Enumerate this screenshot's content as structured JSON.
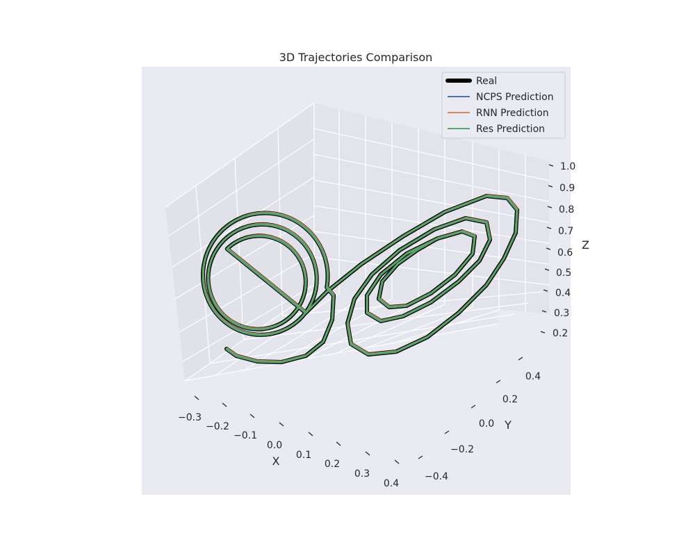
{
  "chart_data": {
    "type": "line",
    "title": "3D Trajectories Comparison",
    "xlabel": "X",
    "ylabel": "Y",
    "zlabel": "Z",
    "xlim": [
      -0.35,
      0.45
    ],
    "ylim": [
      -0.45,
      0.5
    ],
    "zlim": [
      0.18,
      1.0
    ],
    "x_ticks": [
      "−0.3",
      "−0.2",
      "−0.1",
      "0.0",
      "0.1",
      "0.2",
      "0.3",
      "0.4"
    ],
    "y_ticks": [
      "−0.4",
      "−0.2",
      "0.0",
      "0.2",
      "0.4"
    ],
    "z_ticks": [
      "0.2",
      "0.3",
      "0.4",
      "0.5",
      "0.6",
      "0.7",
      "0.8",
      "0.9",
      "1.0"
    ],
    "legend": {
      "position": "top-right",
      "entries": [
        "Real",
        "NCPS Prediction",
        "RNN Prediction",
        "Res Prediction"
      ]
    },
    "grid": true,
    "series": [
      {
        "name": "Real",
        "color": "#000000"
      },
      {
        "name": "NCPS Prediction",
        "color": "#4c72b0"
      },
      {
        "name": "RNN Prediction",
        "color": "#dd8452"
      },
      {
        "name": "Res Prediction",
        "color": "#55a868"
      }
    ]
  }
}
